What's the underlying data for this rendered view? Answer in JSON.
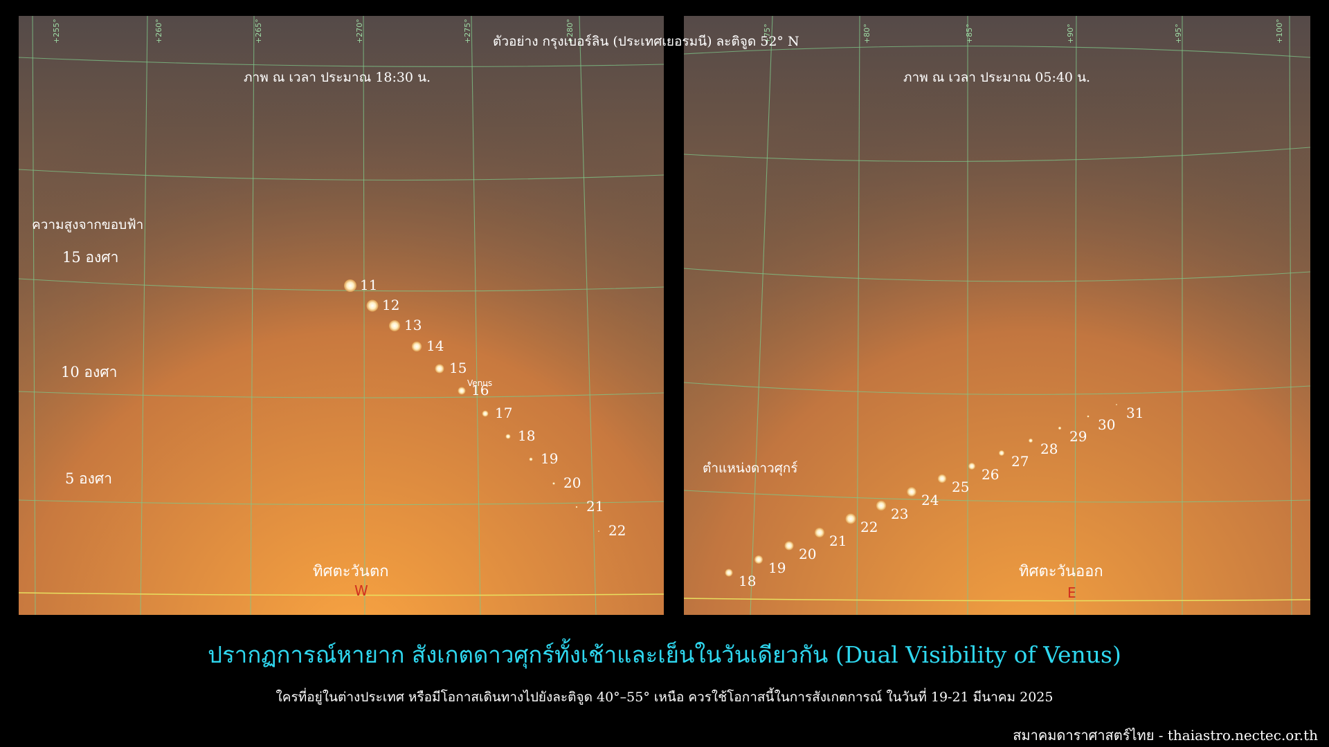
{
  "header_note": "ตัวอย่าง กรุงเบอร์ลิน (ประเทศเยอรมนี) ละติจูด 52° N",
  "left_panel": {
    "time_caption": "ภาพ ณ เวลา ประมาณ 18:30 น.",
    "altitude_title": "ความสูงจากขอบฟ้า",
    "altitude_labels": [
      "15 องศา",
      "10 องศา",
      "5 องศา"
    ],
    "direction_label": "ทิศตะวันตก",
    "compass_letter": "W",
    "azimuth_ticks": [
      "+255°",
      "+260°",
      "+265°",
      "+270°",
      "+275°",
      "+280°"
    ],
    "object_label": "Venus",
    "venus_dates": [
      "11",
      "12",
      "13",
      "14",
      "15",
      "16",
      "17",
      "18",
      "19",
      "20",
      "21",
      "22"
    ]
  },
  "right_panel": {
    "time_caption": "ภาพ ณ เวลา ประมาณ 05:40 น.",
    "position_label": "ตำแหน่งดาวศุกร์",
    "direction_label": "ทิศตะวันออก",
    "compass_letter": "E",
    "azimuth_ticks": [
      "+75°",
      "+80°",
      "+85°",
      "+90°",
      "+95°",
      "+100°"
    ],
    "venus_dates": [
      "18",
      "19",
      "20",
      "21",
      "22",
      "23",
      "24",
      "25",
      "26",
      "27",
      "28",
      "29",
      "30",
      "31"
    ]
  },
  "title": "ปรากฏการณ์หายาก สังเกตดาวศุกร์ทั้งเช้าและเย็นในวันเดียวกัน (Dual Visibility of Venus)",
  "subtitle": "ใครที่อยู่ในต่างประเทศ หรือมีโอกาสเดินทางไปยังละติจูด 40°–55° เหนือ  ควรใช้โอกาสนี้ในการสังเกตการณ์ ในวันที่ 19-21 มีนาคม 2025",
  "credit": "สมาคมดาราศาสตร์ไทย - thaiastro.nectec.or.th",
  "colors": {
    "sky_top": "#554a48",
    "sky_horizon": "#f5a040",
    "grid": "#7fc78a",
    "horizon_line": "#e8e060",
    "venus": "#fff2c8",
    "title": "#2fd8f0",
    "compass": "#d03020"
  }
}
